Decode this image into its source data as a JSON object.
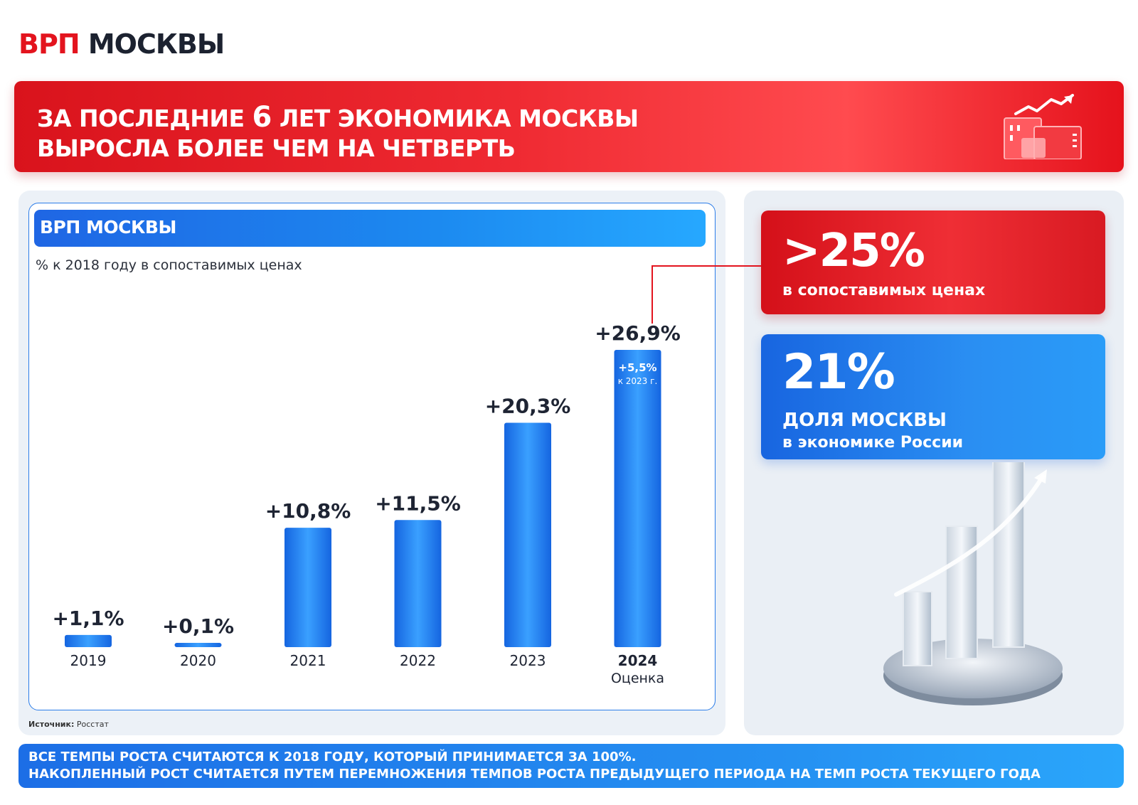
{
  "header": {
    "title_red": "ВРП",
    "title_dark": "МОСКВЫ"
  },
  "banner": {
    "line1_a": "ЗА ПОСЛЕДНИЕ ",
    "line1_big": "6",
    "line1_b": " ЛЕТ ЭКОНОМИКА МОСКВЫ",
    "line2": "ВЫРОСЛА БОЛЕЕ ЧЕМ НА ЧЕТВЕРТЬ",
    "icon": "city-growth-icon"
  },
  "chart_panel": {
    "heading": "ВРП МОСКВЫ",
    "subtitle": "% к 2018 году в сопоставимых ценах",
    "source_label": "Источник:",
    "source_value": "Росстат"
  },
  "chart_data": {
    "type": "bar",
    "title": "ВРП МОСКВЫ",
    "subtitle": "% к 2018 году в сопоставимых ценах",
    "categories": [
      "2019",
      "2020",
      "2021",
      "2022",
      "2023",
      "2024"
    ],
    "category_notes": [
      "",
      "",
      "",
      "",
      "",
      "Оценка"
    ],
    "values": [
      1.1,
      0.1,
      10.8,
      11.5,
      20.3,
      26.9
    ],
    "value_labels": [
      "+1,1%",
      "+0,1%",
      "+10,8%",
      "+11,5%",
      "+20,3%",
      "+26,9%"
    ],
    "inner_annotation": {
      "category": "2024",
      "value_label": "+5,5%",
      "note": "к 2023 г."
    },
    "bold_category": "2024",
    "ylim": [
      0,
      26.9
    ],
    "grid": false,
    "colors": {
      "bar_dark": "#1565e0",
      "bar_light": "#3aa0ff"
    }
  },
  "cards": {
    "red": {
      "value": ">25%",
      "label": "в сопоставимых ценах",
      "color": "#e3141e"
    },
    "blue": {
      "value": "21%",
      "label_line1": "ДОЛЯ МОСКВЫ",
      "label_line2": "в экономике России",
      "color": "#1e7bea"
    }
  },
  "illustration": {
    "icon": "glass-bar-chart-icon"
  },
  "footer": {
    "line1": "ВСЕ ТЕМПЫ РОСТА СЧИТАЮТСЯ К 2018 ГОДУ, КОТОРЫЙ ПРИНИМАЕТСЯ ЗА 100%.",
    "line2": "НАКОПЛЕННЫЙ РОСТ СЧИТАЕТСЯ ПУТЕМ ПЕРЕМНОЖЕНИЯ ТЕМПОВ РОСТА ПРЕДЫДУЩЕГО ПЕРИОДА НА ТЕМП РОСТА ТЕКУЩЕГО ГОДА"
  }
}
